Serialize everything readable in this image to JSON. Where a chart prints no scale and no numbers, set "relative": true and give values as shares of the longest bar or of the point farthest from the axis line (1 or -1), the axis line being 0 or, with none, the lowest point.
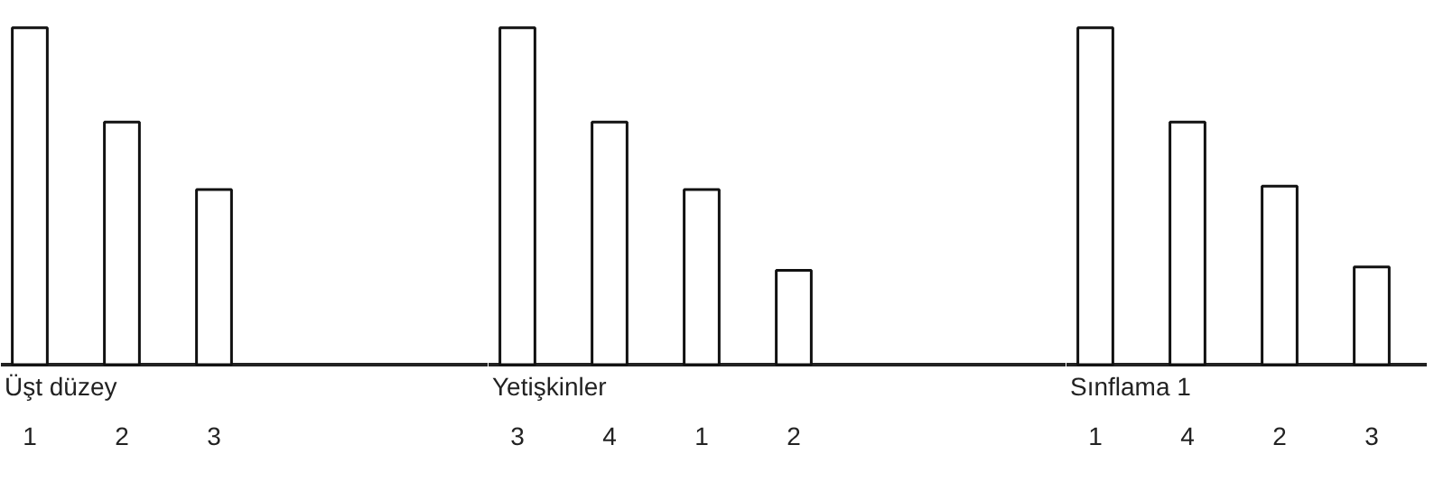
{
  "chart_data": [
    {
      "type": "bar",
      "relative": true,
      "xlabel": "Üşt düzey",
      "categories": [
        "1",
        "2",
        "3"
      ],
      "series": [
        {
          "color": "#ffffff",
          "values": [
            1,
            0.72,
            0.52
          ]
        }
      ]
    },
    {
      "type": "bar",
      "relative": true,
      "xlabel": "Yetişkinler",
      "categories": [
        "3",
        "4",
        "1",
        "2"
      ],
      "series": [
        {
          "color": "#ffffff",
          "values": [
            1,
            0.72,
            0.52,
            0.28
          ]
        }
      ]
    },
    {
      "type": "bar",
      "relative": true,
      "xlabel": "Sınflama 1",
      "categories": [
        "1",
        "4",
        "2",
        "3"
      ],
      "series": [
        {
          "color": "#ffffff",
          "values": [
            1,
            0.72,
            0.53,
            0.29
          ]
        }
      ]
    }
  ]
}
